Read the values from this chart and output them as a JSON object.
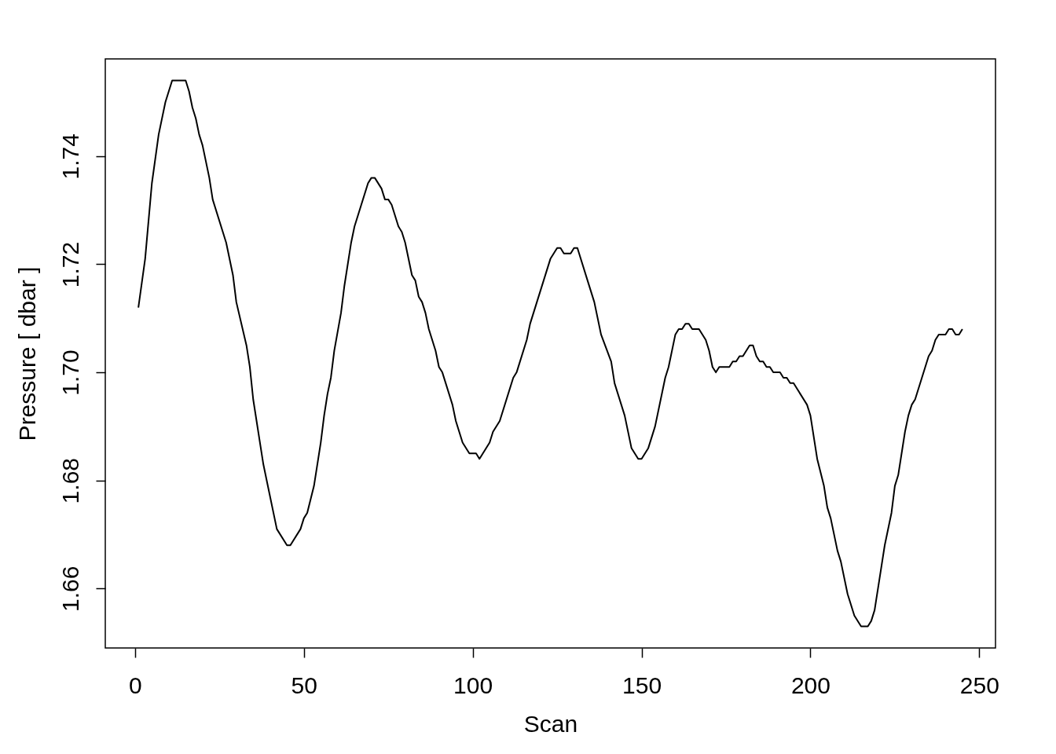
{
  "chart_data": {
    "type": "line",
    "xlabel": "Scan",
    "ylabel": "Pressure [ dbar ]",
    "line_style": "solid",
    "xlim": [
      -8.8,
      254.8
    ],
    "ylim": [
      1.649,
      1.758
    ],
    "xticks": [
      0,
      50,
      100,
      150,
      200,
      250
    ],
    "yticks": [
      1.66,
      1.68,
      {
        "value": 1.7,
        "label": "1.70"
      },
      1.72,
      1.74
    ],
    "x": [
      1,
      3,
      5,
      7,
      9,
      11,
      15,
      16,
      17,
      18,
      19,
      20,
      22,
      23,
      27,
      29,
      30,
      33,
      34,
      35,
      37,
      38,
      39,
      42,
      45,
      46,
      49,
      50,
      51,
      53,
      55,
      56,
      57,
      58,
      59,
      61,
      62,
      64,
      65,
      67,
      69,
      70,
      71,
      73,
      74,
      75,
      76,
      78,
      79,
      80,
      82,
      83,
      84,
      85,
      86,
      87,
      89,
      90,
      91,
      94,
      95,
      97,
      99,
      101,
      102,
      105,
      106,
      108,
      112,
      113,
      116,
      117,
      119,
      121,
      123,
      125,
      126,
      127,
      129,
      130,
      131,
      134,
      136,
      138,
      141,
      142,
      145,
      147,
      149,
      150,
      152,
      154,
      157,
      158,
      160,
      161,
      162,
      163,
      164,
      165,
      167,
      169,
      170,
      171,
      172,
      173,
      176,
      177,
      178,
      179,
      180,
      182,
      183,
      184,
      185,
      186,
      187,
      188,
      189,
      191,
      192,
      193,
      194,
      195,
      199,
      200,
      201,
      202,
      204,
      205,
      206,
      208,
      209,
      211,
      213,
      215,
      217,
      218,
      219,
      220,
      221,
      222,
      224,
      225,
      226,
      228,
      229,
      230,
      231,
      233,
      235,
      236,
      237,
      238,
      240,
      241,
      242,
      243,
      244,
      245
    ],
    "series": [
      {
        "color": "#000000",
        "values": [
          1.712,
          1.721,
          1.735,
          1.744,
          1.75,
          1.754,
          1.754,
          1.752,
          1.749,
          1.747,
          1.744,
          1.742,
          1.736,
          1.732,
          1.724,
          1.718,
          1.713,
          1.705,
          1.701,
          1.695,
          1.687,
          1.683,
          1.68,
          1.671,
          1.668,
          1.668,
          1.671,
          1.673,
          1.674,
          1.679,
          1.687,
          1.692,
          1.696,
          1.699,
          1.704,
          1.711,
          1.716,
          1.724,
          1.727,
          1.731,
          1.735,
          1.736,
          1.736,
          1.734,
          1.732,
          1.732,
          1.731,
          1.727,
          1.726,
          1.724,
          1.718,
          1.717,
          1.714,
          1.713,
          1.711,
          1.708,
          1.704,
          1.701,
          1.7,
          1.694,
          1.691,
          1.687,
          1.685,
          1.685,
          1.684,
          1.687,
          1.689,
          1.691,
          1.699,
          1.7,
          1.706,
          1.709,
          1.713,
          1.717,
          1.721,
          1.723,
          1.723,
          1.722,
          1.722,
          1.723,
          1.723,
          1.717,
          1.713,
          1.707,
          1.702,
          1.698,
          1.692,
          1.686,
          1.684,
          1.684,
          1.686,
          1.69,
          1.699,
          1.701,
          1.707,
          1.708,
          1.708,
          1.709,
          1.709,
          1.708,
          1.708,
          1.706,
          1.704,
          1.701,
          1.7,
          1.701,
          1.701,
          1.702,
          1.702,
          1.703,
          1.703,
          1.705,
          1.705,
          1.703,
          1.702,
          1.702,
          1.701,
          1.701,
          1.7,
          1.7,
          1.699,
          1.699,
          1.698,
          1.698,
          1.694,
          1.692,
          1.688,
          1.684,
          1.679,
          1.675,
          1.673,
          1.667,
          1.665,
          1.659,
          1.655,
          1.653,
          1.653,
          1.654,
          1.656,
          1.66,
          1.664,
          1.668,
          1.674,
          1.679,
          1.681,
          1.689,
          1.692,
          1.694,
          1.695,
          1.699,
          1.703,
          1.704,
          1.706,
          1.707,
          1.707,
          1.708,
          1.708,
          1.707,
          1.707,
          1.708
        ]
      }
    ]
  }
}
